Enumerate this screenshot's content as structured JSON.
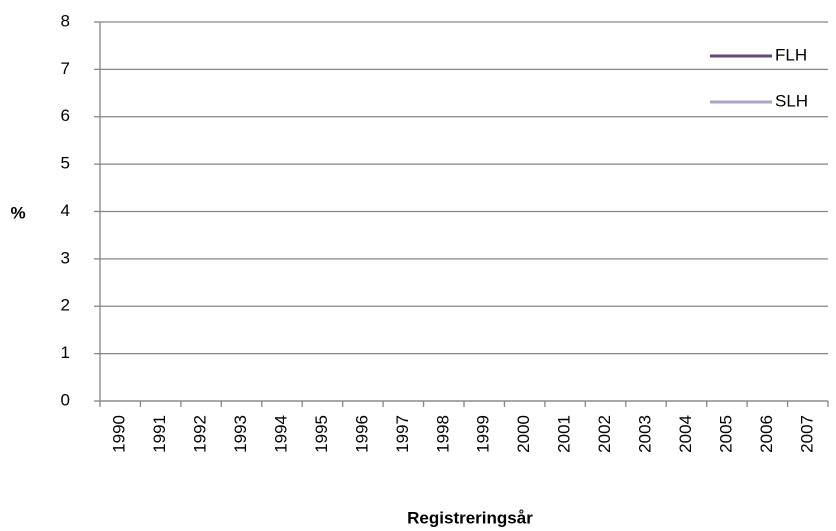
{
  "chart_data": {
    "type": "line",
    "x_label": "Registreringsår",
    "y_label": "%",
    "categories": [
      "1990",
      "1991",
      "1992",
      "1993",
      "1994",
      "1995",
      "1996",
      "1997",
      "1998",
      "1999",
      "2000",
      "2001",
      "2002",
      "2003",
      "2004",
      "2005",
      "2006",
      "2007"
    ],
    "series": [
      {
        "name": "FLH",
        "color": "#604a7b",
        "values": [
          null,
          null,
          null,
          null,
          null,
          null,
          null,
          null,
          null,
          null,
          null,
          null,
          null,
          null,
          null,
          null,
          null,
          null
        ]
      },
      {
        "name": "SLH",
        "color": "#b3a2c7",
        "values": [
          null,
          null,
          null,
          null,
          null,
          null,
          null,
          null,
          null,
          null,
          null,
          null,
          null,
          null,
          null,
          null,
          null,
          null
        ]
      }
    ],
    "ylim": [
      0,
      8
    ],
    "yticks": [
      0,
      1,
      2,
      3,
      4,
      5,
      6,
      7,
      8
    ],
    "grid": true,
    "legend": "right"
  }
}
